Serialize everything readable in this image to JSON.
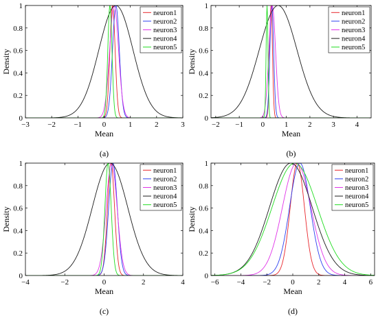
{
  "figure": {
    "colors": {
      "neuron1": "#e8242a",
      "neuron2": "#2b3ef0",
      "neuron3": "#e032e8",
      "neuron4": "#1a1a1a",
      "neuron5": "#1fdc1f"
    }
  },
  "chart_data": [
    {
      "type": "line",
      "caption": "(a)",
      "xlabel": "Mean",
      "ylabel": "Density",
      "xlim": [
        -3,
        3
      ],
      "ylim": [
        0,
        1
      ],
      "xticks": [
        -3,
        -2,
        -1,
        0,
        1,
        2,
        3
      ],
      "yticks": [
        0,
        0.2,
        0.4,
        0.6,
        0.8,
        1
      ],
      "grid": false,
      "legend_position": "top-right",
      "series": [
        {
          "name": "neuron1",
          "color": "#e8242a",
          "mean": 0.32,
          "sd": 0.1
        },
        {
          "name": "neuron2",
          "color": "#2b3ef0",
          "mean": 0.45,
          "sd": 0.13
        },
        {
          "name": "neuron3",
          "color": "#e032e8",
          "mean": 0.38,
          "sd": 0.17
        },
        {
          "name": "neuron4",
          "color": "#1a1a1a",
          "mean": 0.45,
          "sd": 0.65
        },
        {
          "name": "neuron5",
          "color": "#1fdc1f",
          "mean": 0.22,
          "sd": 0.08
        }
      ]
    },
    {
      "type": "line",
      "caption": "(b)",
      "xlabel": "Mean",
      "ylabel": "Density",
      "xlim": [
        -2.2,
        4.6
      ],
      "ylim": [
        0,
        1
      ],
      "xticks": [
        -2,
        -1,
        0,
        1,
        2,
        3,
        4
      ],
      "yticks": [
        0,
        0.2,
        0.4,
        0.6,
        0.8,
        1
      ],
      "grid": false,
      "legend_position": "top-right",
      "series": [
        {
          "name": "neuron1",
          "color": "#e8242a",
          "mean": 0.35,
          "sd": 0.06
        },
        {
          "name": "neuron2",
          "color": "#2b3ef0",
          "mean": 0.38,
          "sd": 0.08
        },
        {
          "name": "neuron3",
          "color": "#e032e8",
          "mean": 0.4,
          "sd": 0.14
        },
        {
          "name": "neuron4",
          "color": "#1a1a1a",
          "mean": 0.65,
          "sd": 0.8
        },
        {
          "name": "neuron5",
          "color": "#1fdc1f",
          "mean": 0.18,
          "sd": 0.04
        }
      ]
    },
    {
      "type": "line",
      "caption": "(c)",
      "xlabel": "Mean",
      "ylabel": "Density",
      "xlim": [
        -4,
        4
      ],
      "ylim": [
        0,
        1
      ],
      "xticks": [
        -4,
        -2,
        0,
        2,
        4
      ],
      "yticks": [
        0,
        0.2,
        0.4,
        0.6,
        0.8,
        1
      ],
      "grid": false,
      "legend_position": "top-right",
      "series": [
        {
          "name": "neuron1",
          "color": "#e8242a",
          "mean": 0.35,
          "sd": 0.18
        },
        {
          "name": "neuron2",
          "color": "#2b3ef0",
          "mean": 0.45,
          "sd": 0.22
        },
        {
          "name": "neuron3",
          "color": "#e032e8",
          "mean": 0.38,
          "sd": 0.28
        },
        {
          "name": "neuron4",
          "color": "#1a1a1a",
          "mean": 0.3,
          "sd": 0.9
        },
        {
          "name": "neuron5",
          "color": "#1fdc1f",
          "mean": 0.2,
          "sd": 0.16
        }
      ]
    },
    {
      "type": "line",
      "caption": "(d)",
      "xlabel": "Mean",
      "ylabel": "Density",
      "xlim": [
        -6.3,
        6.3
      ],
      "ylim": [
        0,
        1
      ],
      "xticks": [
        -6,
        -4,
        -2,
        0,
        2,
        4,
        6
      ],
      "yticks": [
        0,
        0.2,
        0.4,
        0.6,
        0.8,
        1
      ],
      "grid": false,
      "legend_position": "top-right",
      "series": [
        {
          "name": "neuron1",
          "color": "#e8242a",
          "mean": 0.35,
          "sd": 0.55
        },
        {
          "name": "neuron2",
          "color": "#2b3ef0",
          "mean": 0.55,
          "sd": 0.8
        },
        {
          "name": "neuron3",
          "color": "#e032e8",
          "mean": 0.3,
          "sd": 1.1
        },
        {
          "name": "neuron4",
          "color": "#1a1a1a",
          "mean": -0.15,
          "sd": 1.65
        },
        {
          "name": "neuron5",
          "color": "#1fdc1f",
          "mean": 0.15,
          "sd": 1.75
        }
      ]
    }
  ]
}
